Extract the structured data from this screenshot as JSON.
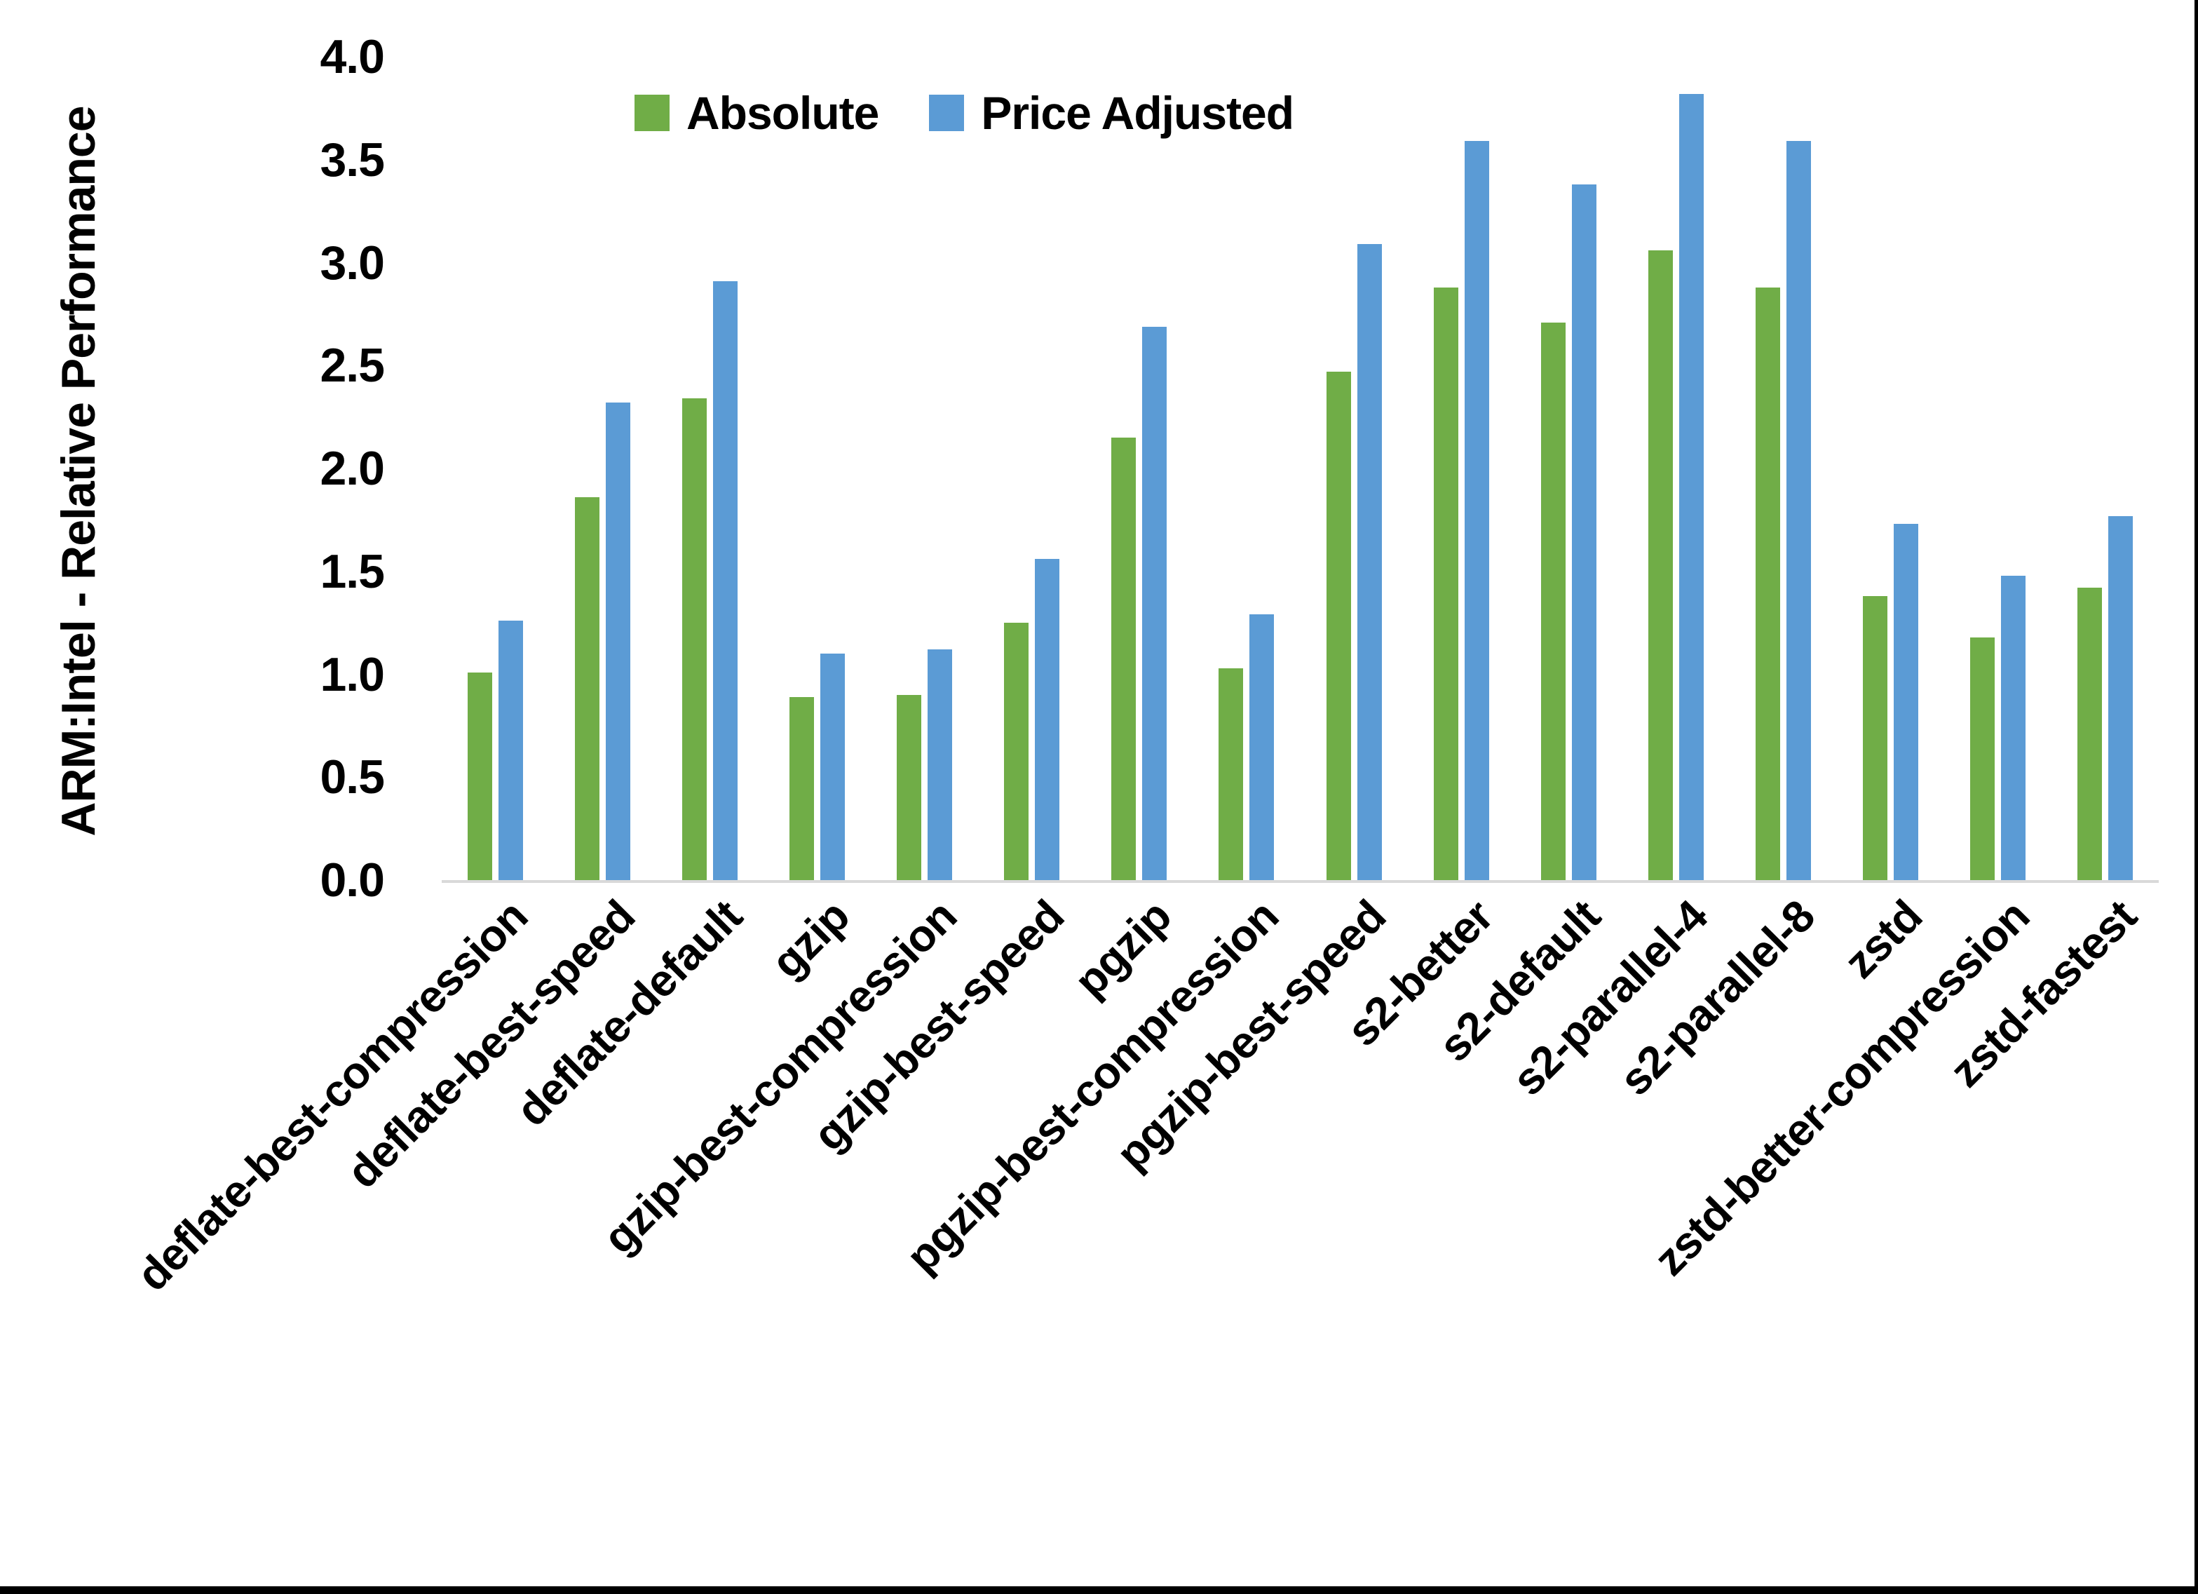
{
  "chart_data": {
    "type": "bar",
    "title": "",
    "xlabel": "",
    "ylabel": "ARM:Intel - Relative Performance",
    "ylim": [
      0.0,
      4.0
    ],
    "ytick_labels": [
      "0.0",
      "0.5",
      "1.0",
      "1.5",
      "2.0",
      "2.5",
      "3.0",
      "3.5",
      "4.0"
    ],
    "grid": false,
    "legend_position": "top-inside",
    "axis_line_color": "#d9d9d9",
    "background_color": "#ffffff",
    "text_color": "#000000",
    "categories": [
      "deflate-best-compression",
      "deflate-best-speed",
      "deflate-default",
      "gzip",
      "gzip-best-compression",
      "gzip-best-speed",
      "pgzip",
      "pgzip-best-compression",
      "pgzip-best-speed",
      "s2-better",
      "s2-default",
      "s2-parallel-4",
      "s2-parallel-8",
      "zstd",
      "zstd-better-compression",
      "zstd-fastest"
    ],
    "series": [
      {
        "name": "Absolute",
        "color": "#70AD47",
        "values": [
          1.01,
          1.86,
          2.34,
          0.89,
          0.9,
          1.25,
          2.15,
          1.03,
          2.47,
          2.88,
          2.71,
          3.06,
          2.88,
          1.38,
          1.18,
          1.42
        ]
      },
      {
        "name": "Price Adjusted",
        "color": "#5B9BD5",
        "values": [
          1.26,
          2.32,
          2.91,
          1.1,
          1.12,
          1.56,
          2.69,
          1.29,
          3.09,
          3.59,
          3.38,
          3.82,
          3.59,
          1.73,
          1.48,
          1.77
        ]
      }
    ]
  }
}
